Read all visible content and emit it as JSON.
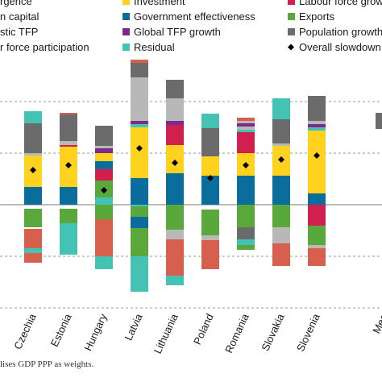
{
  "chart_data": {
    "type": "bar",
    "stacked": true,
    "legend_placement": "top",
    "categories": [
      "Czechia",
      "Estonia",
      "Hungary",
      "Latvia",
      "Lithuania",
      "Poland",
      "Romania",
      "Slovakia",
      "Slovenia",
      "Mea"
    ],
    "series": [
      {
        "name": "rgence",
        "color": "#f4a582",
        "values": [
          null,
          null,
          null,
          null,
          null,
          null,
          null,
          null,
          null,
          null
        ]
      },
      {
        "name": "n capital",
        "color": "#d6604d",
        "values": [
          null,
          null,
          null,
          null,
          null,
          null,
          null,
          null,
          null,
          null
        ]
      },
      {
        "name": "stic TFP",
        "color": "#b8b8b8",
        "values": [
          null,
          null,
          null,
          null,
          null,
          null,
          null,
          null,
          null,
          null
        ]
      },
      {
        "name": "r force participation",
        "color": "#c8c8c8",
        "values": [
          null,
          null,
          null,
          null,
          null,
          null,
          null,
          null,
          null,
          null
        ]
      },
      {
        "name": "Investment",
        "color": "#ffd21f",
        "values": [
          null,
          null,
          null,
          null,
          null,
          null,
          null,
          null,
          null,
          null
        ]
      },
      {
        "name": "Government effectiveness",
        "color": "#0a6d9c",
        "values": [
          null,
          null,
          null,
          null,
          null,
          null,
          null,
          null,
          null,
          null
        ]
      },
      {
        "name": "Global TFP growth",
        "color": "#7b2b8a",
        "values": [
          null,
          null,
          null,
          null,
          null,
          null,
          null,
          null,
          null,
          null
        ]
      },
      {
        "name": "Residual",
        "color": "#44c2b3",
        "values": [
          null,
          null,
          null,
          null,
          null,
          null,
          null,
          null,
          null,
          null
        ]
      },
      {
        "name": "Labour force grow",
        "color": "#d11f4f",
        "values": [
          null,
          null,
          null,
          null,
          null,
          null,
          null,
          null,
          null,
          null
        ]
      },
      {
        "name": "Exports",
        "color": "#5aa83c",
        "values": [
          null,
          null,
          null,
          null,
          null,
          null,
          null,
          null,
          null,
          null
        ]
      },
      {
        "name": "Population growth",
        "color": "#6b6b6b",
        "values": [
          null,
          null,
          null,
          null,
          null,
          null,
          null,
          null,
          null,
          null
        ]
      },
      {
        "name": "Overall slowdown",
        "color": "#000000",
        "marker": "diamond",
        "values": [
          null,
          null,
          null,
          null,
          null,
          null,
          null,
          null,
          null,
          null
        ]
      }
    ],
    "grid": "dashed horizontal",
    "footnote": "lises GDP PPP as weights."
  }
}
